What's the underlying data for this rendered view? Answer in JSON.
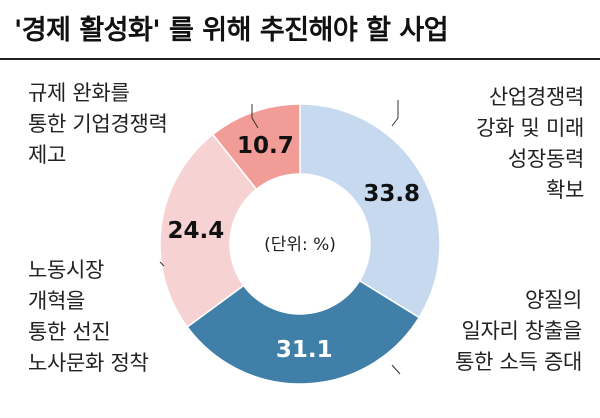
{
  "title": "'경제 활성화' 를 위해 추진해야 할 사업",
  "unit_label": "(단위: %)",
  "chart_data": {
    "type": "pie",
    "title": "'경제 활성화' 를 위해 추진해야 할 사업",
    "unit": "(단위: %)",
    "categories": [
      "산업경쟁력 강화 및 미래 성장동력 확보",
      "양질의 일자리 창출을 통한 소득 증대",
      "노동시장 개혁을 통한 선진 노사문화 정착",
      "규제 완화를 통한 기업경쟁력 제고"
    ],
    "values": [
      33.8,
      31.1,
      24.4,
      10.7
    ],
    "value_labels": [
      "33.8",
      "31.1",
      "24.4",
      "10.7"
    ],
    "colors": [
      "#c7d9ef",
      "#3f7fa8",
      "#f7d2d2",
      "#f29c97"
    ],
    "label_colors": [
      "#111111",
      "#ffffff",
      "#111111",
      "#111111"
    ],
    "donut": true
  },
  "labels": {
    "industry": "산업경쟁력\n강화 및 미래\n성장동력\n확보",
    "jobs": "양질의\n일자리 창출을\n통한 소득 증대",
    "labor": "노동시장\n개혁을\n통한 선진\n노사문화 정착",
    "regulation": "규제 완화를\n통한 기업경쟁력\n제고"
  }
}
